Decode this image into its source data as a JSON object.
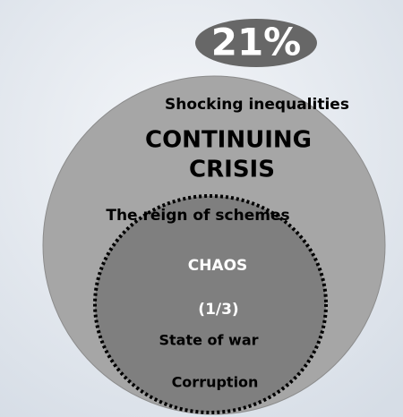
{
  "badge": {
    "label": "21%"
  },
  "outer": {
    "subtitle": "Shocking inequalities",
    "title_lines": [
      "CONTINUING",
      "CRISIS"
    ],
    "note": "The reign of schemes"
  },
  "inner": {
    "title": "CHAOS",
    "share": "(1/3)",
    "items": [
      "State of war",
      "Corruption"
    ]
  }
}
